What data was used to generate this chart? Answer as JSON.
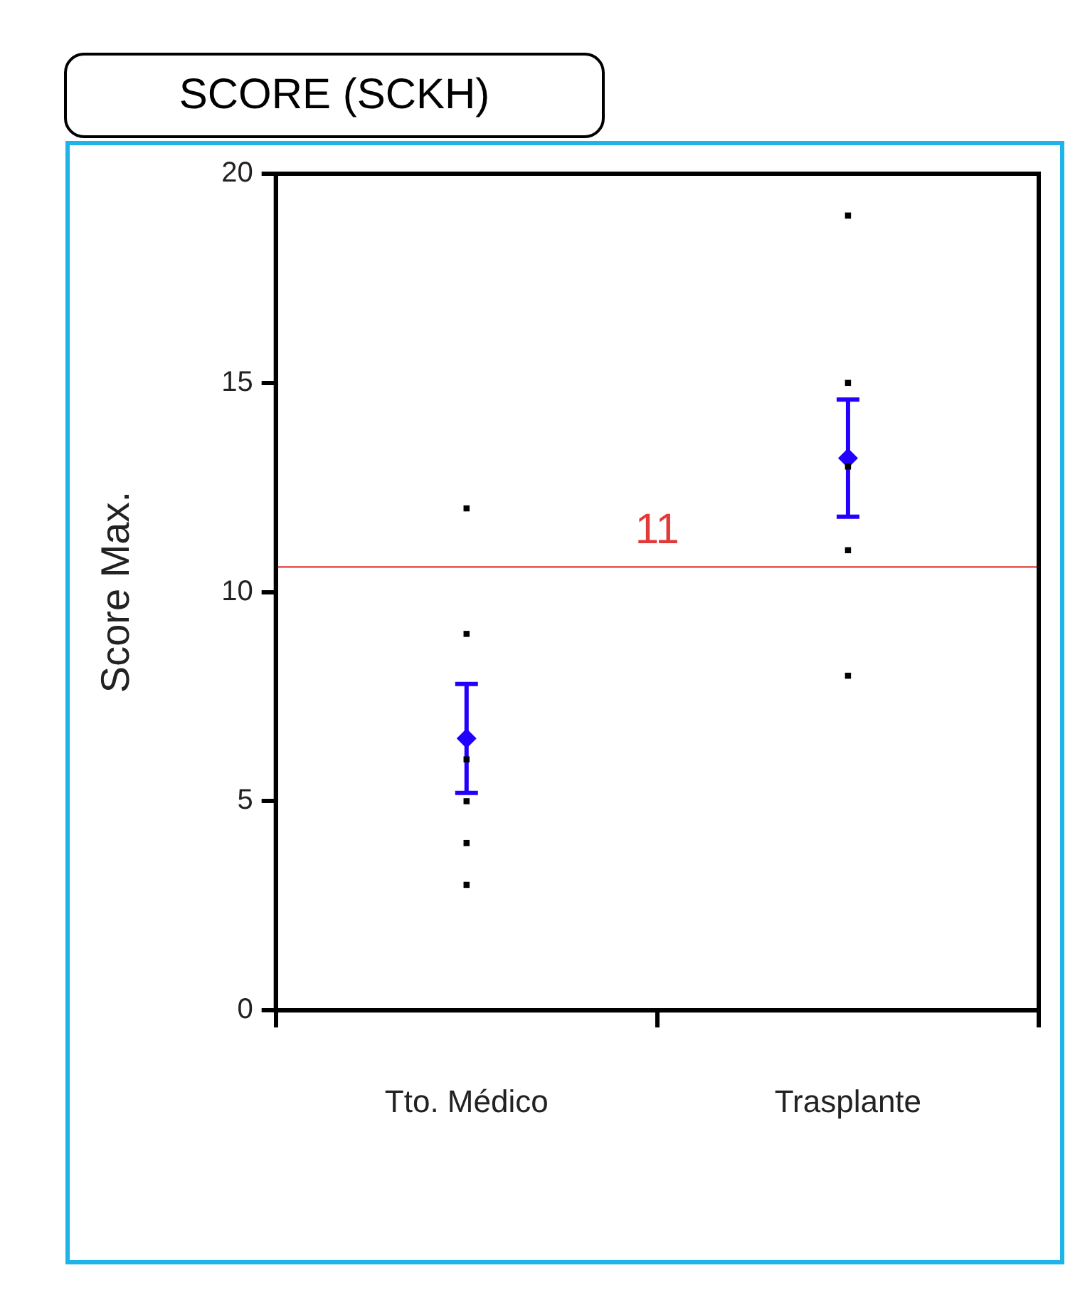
{
  "chart_data": {
    "type": "scatter",
    "title": "SCORE (SCKH)",
    "ylabel": "Score Max.",
    "categories": [
      "Tto. Médico",
      "Trasplante"
    ],
    "series": [
      {
        "color": "#000000",
        "marker": "square",
        "x": [
          "Tto. Médico",
          "Tto. Médico",
          "Tto. Médico",
          "Tto. Médico",
          "Tto. Médico",
          "Tto. Médico",
          "Trasplante",
          "Trasplante",
          "Trasplante",
          "Trasplante",
          "Trasplante"
        ],
        "values": [
          12,
          9,
          6,
          5,
          4,
          3,
          19,
          15,
          13,
          11,
          8
        ]
      },
      {
        "color": "#2200ff",
        "marker": "diamond",
        "x": [
          "Tto. Médico",
          "Trasplante"
        ],
        "values": [
          6.5,
          13.2
        ],
        "errors": [
          1.3,
          1.4
        ]
      }
    ],
    "ref_lines": [
      {
        "axis": "y",
        "value": 10.6,
        "label": "11",
        "color": "#e03a3a"
      }
    ],
    "ylim": [
      0,
      20
    ],
    "yticks": [
      0,
      5,
      10,
      15,
      20
    ],
    "grid": false,
    "legend": false
  }
}
